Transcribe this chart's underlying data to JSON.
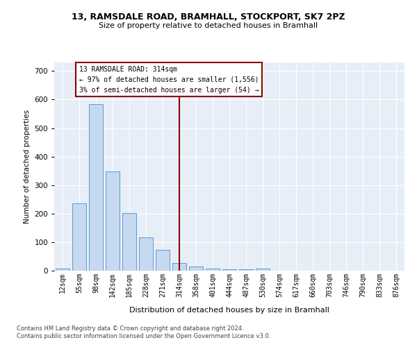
{
  "title_line1": "13, RAMSDALE ROAD, BRAMHALL, STOCKPORT, SK7 2PZ",
  "title_line2": "Size of property relative to detached houses in Bramhall",
  "xlabel": "Distribution of detached houses by size in Bramhall",
  "ylabel": "Number of detached properties",
  "categories": [
    "12sqm",
    "55sqm",
    "98sqm",
    "142sqm",
    "185sqm",
    "228sqm",
    "271sqm",
    "314sqm",
    "358sqm",
    "401sqm",
    "444sqm",
    "487sqm",
    "530sqm",
    "574sqm",
    "617sqm",
    "660sqm",
    "703sqm",
    "746sqm",
    "790sqm",
    "833sqm",
    "876sqm"
  ],
  "values": [
    7,
    235,
    585,
    348,
    202,
    118,
    72,
    27,
    15,
    8,
    5,
    5,
    7,
    0,
    0,
    0,
    0,
    0,
    0,
    0,
    0
  ],
  "bar_color": "#c6d9f0",
  "bar_edge_color": "#5b9bd5",
  "vline_color": "#8b0000",
  "annotation_text": "13 RAMSDALE ROAD: 314sqm\n← 97% of detached houses are smaller (1,556)\n3% of semi-detached houses are larger (54) →",
  "annotation_box_color": "#8b0000",
  "ylim": [
    0,
    730
  ],
  "yticks": [
    0,
    100,
    200,
    300,
    400,
    500,
    600,
    700
  ],
  "background_color": "#e8eef7",
  "grid_color": "#ffffff",
  "footer_line1": "Contains HM Land Registry data © Crown copyright and database right 2024.",
  "footer_line2": "Contains public sector information licensed under the Open Government Licence v3.0."
}
